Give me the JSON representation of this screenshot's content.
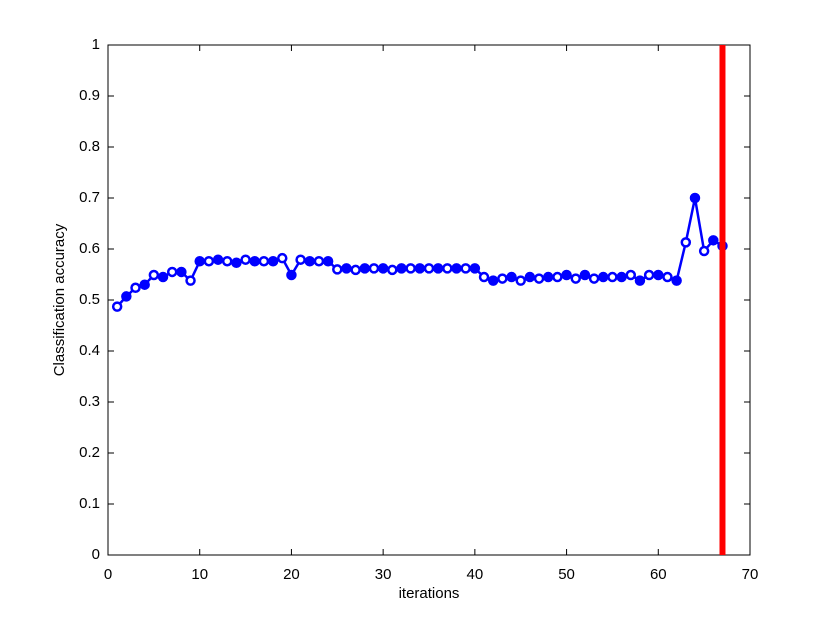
{
  "chart_data": {
    "type": "line",
    "x_label": "iterations",
    "y_label": "Classification accuracy",
    "x": [
      1,
      2,
      3,
      4,
      5,
      6,
      7,
      8,
      9,
      10,
      11,
      12,
      13,
      14,
      15,
      16,
      17,
      18,
      19,
      20,
      21,
      22,
      23,
      24,
      25,
      26,
      27,
      28,
      29,
      30,
      31,
      32,
      33,
      34,
      35,
      36,
      37,
      38,
      39,
      40,
      41,
      42,
      43,
      44,
      45,
      46,
      47,
      48,
      49,
      50,
      51,
      52,
      53,
      54,
      55,
      56,
      57,
      58,
      59,
      60,
      61,
      62,
      63,
      64,
      65,
      66,
      67
    ],
    "series": [
      {
        "color": "#0000ff",
        "values": [
          0.487,
          0.507,
          0.524,
          0.53,
          0.549,
          0.545,
          0.555,
          0.555,
          0.538,
          0.576,
          0.576,
          0.579,
          0.576,
          0.573,
          0.579,
          0.576,
          0.576,
          0.576,
          0.582,
          0.549,
          0.579,
          0.576,
          0.576,
          0.576,
          0.56,
          0.562,
          0.559,
          0.562,
          0.562,
          0.562,
          0.559,
          0.562,
          0.562,
          0.562,
          0.562,
          0.562,
          0.562,
          0.562,
          0.562,
          0.562,
          0.545,
          0.538,
          0.542,
          0.545,
          0.538,
          0.545,
          0.542,
          0.545,
          0.545,
          0.549,
          0.542,
          0.549,
          0.542,
          0.545,
          0.545,
          0.545,
          0.549,
          0.538,
          0.549,
          0.549,
          0.545,
          0.538,
          0.613,
          0.7,
          0.596,
          0.617,
          0.606
        ]
      }
    ],
    "vline": {
      "x": 67,
      "color": "#ff0000"
    },
    "xlim": [
      0,
      70
    ],
    "xticks": [
      0,
      10,
      20,
      30,
      40,
      50,
      60,
      70
    ],
    "ylim": [
      0,
      1
    ],
    "yticks": [
      0,
      0.1,
      0.2,
      0.3,
      0.4,
      0.5,
      0.6,
      0.7,
      0.8,
      0.9,
      1
    ]
  }
}
